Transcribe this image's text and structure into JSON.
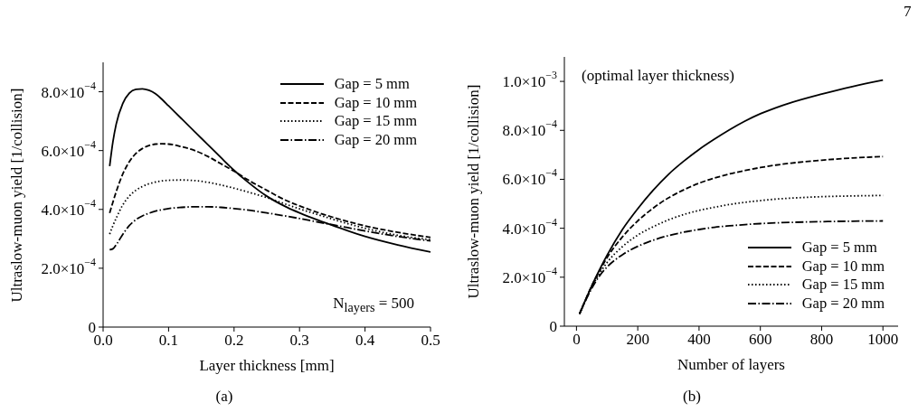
{
  "chart_data": [
    {
      "type": "line",
      "xlabel": "Layer thickness [mm]",
      "ylabel": "Ultraslow-muon yield [1/collision]",
      "x": [
        0.01,
        0.015,
        0.02,
        0.03,
        0.04,
        0.05,
        0.06,
        0.07,
        0.08,
        0.09,
        0.1,
        0.12,
        0.14,
        0.16,
        0.18,
        0.2,
        0.22,
        0.25,
        0.28,
        0.3,
        0.33,
        0.35,
        0.4,
        0.45,
        0.5
      ],
      "series": [
        {
          "name": "Gap = 5 mm",
          "color": "#000000",
          "line_style": "solid",
          "values": [
            0.000547,
            0.00063,
            0.00069,
            0.00076,
            0.000795,
            0.000808,
            0.00081,
            0.000805,
            0.000793,
            0.000774,
            0.000752,
            0.000708,
            0.000664,
            0.00062,
            0.000576,
            0.000533,
            0.000495,
            0.000445,
            0.000408,
            0.000388,
            0.000362,
            0.000346,
            0.000308,
            0.000279,
            0.000255
          ]
        },
        {
          "name": "Gap = 10 mm",
          "color": "#000000",
          "line_style": "dashed",
          "values": [
            0.000388,
            0.000425,
            0.00046,
            0.00052,
            0.000562,
            0.00059,
            0.000607,
            0.000617,
            0.000622,
            0.000623,
            0.000622,
            0.000613,
            0.0006,
            0.00058,
            0.000555,
            0.00053,
            0.000502,
            0.000465,
            0.00043,
            0.000412,
            0.000388,
            0.000374,
            0.000344,
            0.000322,
            0.000305
          ]
        },
        {
          "name": "Gap = 15 mm",
          "color": "#000000",
          "line_style": "dotted",
          "values": [
            0.000316,
            0.000345,
            0.00037,
            0.000415,
            0.000445,
            0.000465,
            0.000478,
            0.000487,
            0.000493,
            0.000497,
            0.000499,
            0.0005,
            0.000498,
            0.000492,
            0.000483,
            0.000472,
            0.00046,
            0.00044,
            0.000417,
            0.000402,
            0.000381,
            0.000367,
            0.000336,
            0.000312,
            0.000297
          ]
        },
        {
          "name": "Gap = 20 mm",
          "color": "#000000",
          "line_style": "dashdot",
          "values": [
            0.000263,
            0.000266,
            0.00028,
            0.000315,
            0.000345,
            0.000365,
            0.000378,
            0.000387,
            0.000394,
            0.000399,
            0.000403,
            0.000407,
            0.000409,
            0.000409,
            0.000407,
            0.000403,
            0.000398,
            0.000388,
            0.000377,
            0.000369,
            0.000356,
            0.000348,
            0.000327,
            0.000308,
            0.000293
          ]
        }
      ],
      "xlim": [
        0,
        0.5
      ],
      "ylim": [
        0,
        0.0009
      ],
      "xticks": [
        {
          "value": 0,
          "label": "0.0"
        },
        0.1,
        0.2,
        0.3,
        0.4,
        0.5
      ],
      "yticks": [
        0,
        {
          "value": 0.0002,
          "label": "2.0×10$^{−4}$"
        },
        {
          "value": 0.0004,
          "label": "4.0×10$^{−4}$"
        },
        {
          "value": 0.0006,
          "label": "6.0×10$^{−4}$"
        },
        {
          "value": 0.0008,
          "label": "8.0×10$^{−4}$"
        }
      ],
      "legend": "top right",
      "annotations": [
        "N$_{layers}$ = 500",
        "(a)"
      ]
    },
    {
      "type": "line",
      "xlabel": "Number of layers",
      "ylabel": "Ultraslow-muon yield [1/collision]",
      "x": [
        10,
        50,
        75,
        100,
        150,
        200,
        250,
        300,
        350,
        400,
        450,
        500,
        550,
        600,
        650,
        700,
        800,
        900,
        1000
      ],
      "series": [
        {
          "name": "Gap = 5 mm",
          "color": "#000000",
          "line_style": "solid",
          "values": [
            5e-05,
            0.000165,
            0.00023,
            0.00029,
            0.000395,
            0.00048,
            0.000555,
            0.00062,
            0.000674,
            0.000722,
            0.000764,
            0.000803,
            0.000838,
            0.000868,
            0.000892,
            0.000913,
            0.000948,
            0.000979,
            0.001005
          ]
        },
        {
          "name": "Gap = 10 mm",
          "color": "#000000",
          "line_style": "dashed",
          "values": [
            5e-05,
            0.000165,
            0.000225,
            0.00028,
            0.000365,
            0.00043,
            0.000482,
            0.000524,
            0.000557,
            0.000584,
            0.000605,
            0.000622,
            0.000636,
            0.000648,
            0.000658,
            0.000666,
            0.000678,
            0.000687,
            0.000693
          ]
        },
        {
          "name": "Gap = 15 mm",
          "color": "#000000",
          "line_style": "dotted",
          "values": [
            5e-05,
            0.00016,
            0.000215,
            0.00026,
            0.000325,
            0.000372,
            0.000406,
            0.000434,
            0.000456,
            0.000473,
            0.000486,
            0.000497,
            0.000506,
            0.000513,
            0.000519,
            0.000523,
            0.000529,
            0.000532,
            0.000534
          ]
        },
        {
          "name": "Gap = 20 mm",
          "color": "#000000",
          "line_style": "dashdot",
          "values": [
            5e-05,
            0.000155,
            0.000205,
            0.000242,
            0.000292,
            0.000326,
            0.000351,
            0.00037,
            0.000384,
            0.000395,
            0.000404,
            0.00041,
            0.000415,
            0.000419,
            0.000422,
            0.000424,
            0.000427,
            0.000429,
            0.00043
          ]
        }
      ],
      "xlim": [
        -39.5,
        1049.5
      ],
      "ylim": [
        0,
        0.0011
      ],
      "xticks": [
        0,
        200,
        400,
        600,
        800,
        1000
      ],
      "yticks": [
        0,
        {
          "value": 0.0002,
          "label": "2.0×10$^{−4}$"
        },
        {
          "value": 0.0004,
          "label": "4.0×10$^{−4}$"
        },
        {
          "value": 0.0006,
          "label": "6.0×10$^{−4}$"
        },
        {
          "value": 0.0008,
          "label": "8.0×10$^{−4}$"
        },
        {
          "value": 0.001,
          "label": "1.0×10$^{−3}$"
        }
      ],
      "legend": "bottom right",
      "annotations": [
        "(optimal layer thickness)",
        "(b)",
        "7"
      ]
    }
  ]
}
